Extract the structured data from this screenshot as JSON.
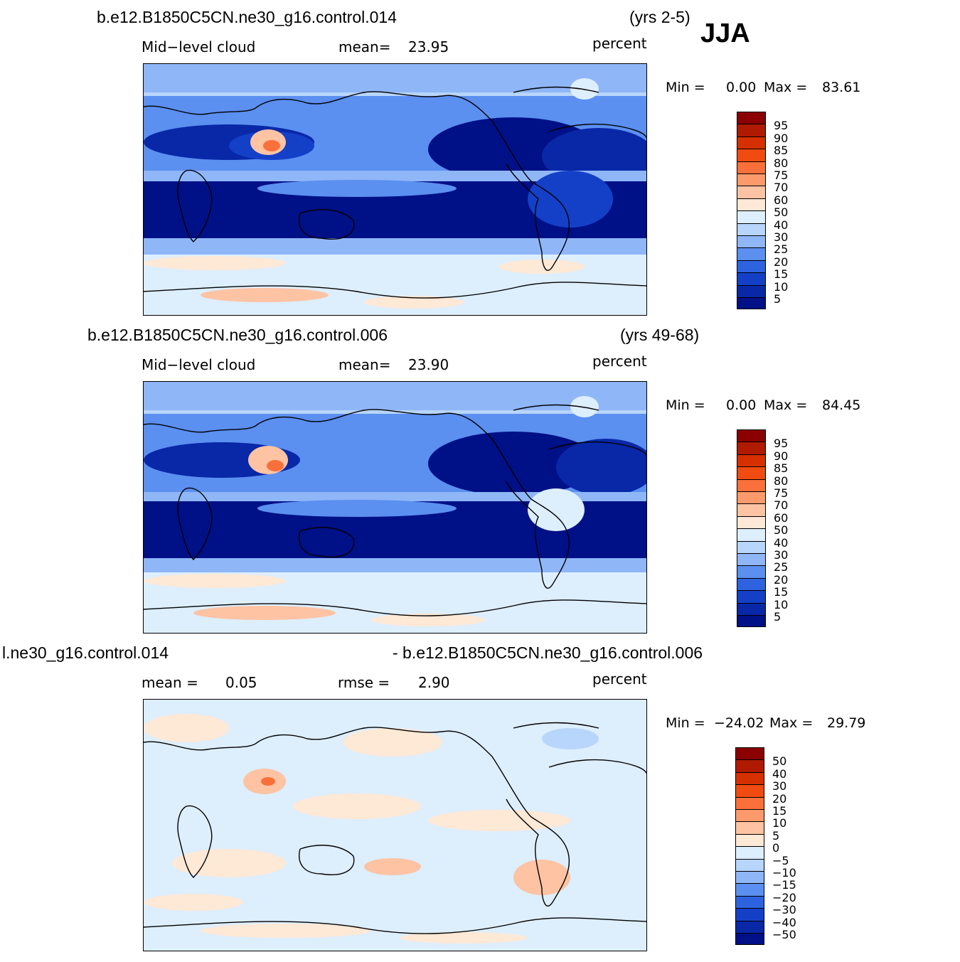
{
  "season": "JJA",
  "panels": [
    {
      "case_name": "b.e12.B1850C5CN.ne30_g16.control.014",
      "years": "(yrs 2-5)",
      "variable": "Mid−level cloud",
      "stat_label": "mean=",
      "stat_value": "23.95",
      "units": "percent",
      "min_label": "Min =",
      "min_value": "0.00",
      "max_label": "Max =",
      "max_value": "83.61"
    },
    {
      "case_name": "b.e12.B1850C5CN.ne30_g16.control.006",
      "years": "(yrs 49-68)",
      "variable": "Mid−level cloud",
      "stat_label": "mean=",
      "stat_value": "23.90",
      "units": "percent",
      "min_label": "Min =",
      "min_value": "0.00",
      "max_label": "Max =",
      "max_value": "84.45"
    },
    {
      "case_name": "l.ne30_g16.control.014",
      "diff_case": "- b.e12.B1850C5CN.ne30_g16.control.006",
      "mean_label": "mean =",
      "mean_value": "0.05",
      "rmse_label": "rmse =",
      "rmse_value": "2.90",
      "units": "percent",
      "min_label": "Min =",
      "min_value": "−24.02",
      "max_label": "Max =",
      "max_value": "29.79"
    }
  ],
  "colorbar_abs": {
    "labels": [
      "95",
      "90",
      "85",
      "80",
      "75",
      "70",
      "60",
      "50",
      "40",
      "30",
      "25",
      "20",
      "15",
      "10",
      "5"
    ],
    "colors": [
      "#8b0000",
      "#b01a00",
      "#d63000",
      "#f04b10",
      "#f9703a",
      "#fc9a6c",
      "#fdc3a3",
      "#fee8d6",
      "#ddeefd",
      "#b8d5fb",
      "#8fb6f7",
      "#5b8ff0",
      "#2e63e0",
      "#1440c8",
      "#0828a8",
      "#001087"
    ]
  },
  "colorbar_diff": {
    "labels": [
      "50",
      "40",
      "30",
      "20",
      "15",
      "10",
      "5",
      "0",
      "−5",
      "−10",
      "−15",
      "−20",
      "−30",
      "−40",
      "−50"
    ],
    "colors": [
      "#8b0000",
      "#b01a00",
      "#d63000",
      "#f04b10",
      "#f9703a",
      "#fc9a6c",
      "#fdc3a3",
      "#fee8d6",
      "#ddeefd",
      "#b8d5fb",
      "#8fb6f7",
      "#5b8ff0",
      "#2e63e0",
      "#1440c8",
      "#0828a8",
      "#001087"
    ]
  }
}
